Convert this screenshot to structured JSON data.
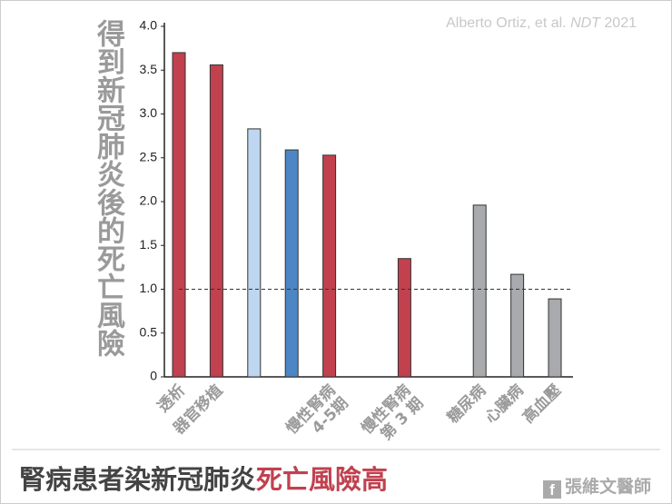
{
  "chart_data": {
    "type": "bar",
    "y_label": "得到新冠肺炎後的死亡風險",
    "source": [
      "Alberto Ortiz, et al. ",
      "NDT",
      " 2021"
    ],
    "footer_title": [
      "腎病患者染新冠肺炎",
      "死亡風險高"
    ],
    "footer_logo": "張維文醫師",
    "categories": [
      [
        "透析"
      ],
      [
        "器官移植"
      ],
      null,
      null,
      [
        "慢性腎病",
        "4-5期"
      ],
      null,
      [
        "慢性腎病",
        "第 3 期"
      ],
      null,
      [
        "糖尿病"
      ],
      [
        "心臟病"
      ],
      [
        "高血壓"
      ]
    ],
    "values": [
      3.7,
      3.56,
      2.83,
      2.59,
      2.53,
      null,
      1.35,
      null,
      1.96,
      1.17,
      0.89
    ],
    "colors": [
      "#c1414f",
      "#c1414f",
      "#bed6ef",
      "#4d86c4",
      "#c1414f",
      null,
      "#c1414f",
      null,
      "#a8aaae",
      "#a8aaae",
      "#a8aaae"
    ],
    "reference_line": 1.0,
    "ylim": [
      0,
      4.0
    ],
    "yticks": [
      0,
      {
        "value": 0.5,
        "label": "0.5"
      },
      {
        "value": 1.0,
        "label": "1.0"
      },
      {
        "value": 1.5,
        "label": "1.5"
      },
      {
        "value": 2.0,
        "label": "2.0"
      },
      {
        "value": 2.5,
        "label": "2.5"
      },
      {
        "value": 3.0,
        "label": "3.0"
      },
      {
        "value": 3.5,
        "label": "3.5"
      },
      {
        "value": 4.0,
        "label": "4.0"
      }
    ]
  }
}
